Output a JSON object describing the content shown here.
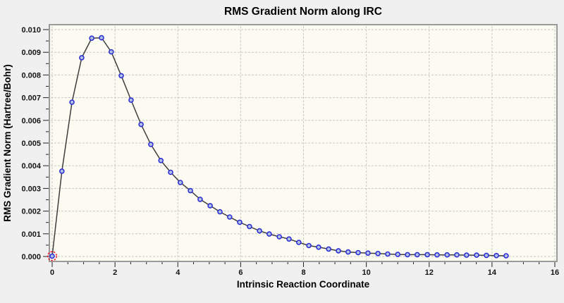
{
  "chart_data": {
    "type": "line",
    "title": "RMS Gradient Norm along IRC",
    "xlabel": "Intrinsic Reaction Coordinate",
    "ylabel": "RMS Gradient Norm (Hartree/Bohr)",
    "xlim": [
      0,
      16
    ],
    "ylim": [
      0,
      0.01
    ],
    "x_major_step": 2,
    "x_minor_step": 0.5,
    "y_major_step": 0.001,
    "y_minor_step": 0.0005,
    "x_tick_labels": [
      "0",
      "2",
      "4",
      "6",
      "8",
      "10",
      "12",
      "14",
      "16"
    ],
    "y_tick_labels": [
      "0.000",
      "0.001",
      "0.002",
      "0.003",
      "0.004",
      "0.005",
      "0.006",
      "0.007",
      "0.008",
      "0.009",
      "0.010"
    ],
    "grid": "dashed major gridlines on both axes",
    "legend": "none",
    "highlighted_point_index": 0,
    "series": [
      {
        "name": "RMS Gradient Norm",
        "marker": "circle",
        "x": [
          0,
          0.31,
          0.63,
          0.94,
          1.26,
          1.57,
          1.88,
          2.2,
          2.51,
          2.83,
          3.14,
          3.46,
          3.77,
          4.08,
          4.4,
          4.71,
          5.03,
          5.34,
          5.65,
          5.97,
          6.28,
          6.6,
          6.91,
          7.23,
          7.54,
          7.85,
          8.17,
          8.48,
          8.8,
          9.11,
          9.42,
          9.74,
          10.05,
          10.37,
          10.68,
          11.0,
          11.31,
          11.62,
          11.94,
          12.25,
          12.57,
          12.88,
          13.19,
          13.51,
          13.82,
          14.14,
          14.45
        ],
        "y": [
          2e-05,
          0.00376,
          0.0068,
          0.00876,
          0.00962,
          0.00964,
          0.00902,
          0.00797,
          0.00689,
          0.00582,
          0.00494,
          0.00423,
          0.00371,
          0.00326,
          0.0029,
          0.00252,
          0.00224,
          0.00197,
          0.00174,
          0.00151,
          0.00132,
          0.00113,
          0.00099,
          0.00087,
          0.00077,
          0.00062,
          0.00048,
          0.00041,
          0.00033,
          0.00025,
          0.0002,
          0.00017,
          0.00015,
          0.00013,
          0.00011,
          9e-05,
          8e-05,
          8e-05,
          8e-05,
          7e-05,
          7e-05,
          7e-05,
          6e-05,
          6e-05,
          5e-05,
          4e-05,
          3e-05
        ]
      }
    ]
  },
  "colors": {
    "page_background": "#f0f0f0",
    "plot_background": "#fcfbf2",
    "plot_frame": "#9a9a9a",
    "gridline": "#c9c9c1",
    "tick": "#222222",
    "series_line": "#3d3d3d",
    "marker_stroke": "#2f2fd3",
    "marker_fill": "#b4c4e6",
    "highlight_ring": "#e81123",
    "text": "#000000"
  }
}
